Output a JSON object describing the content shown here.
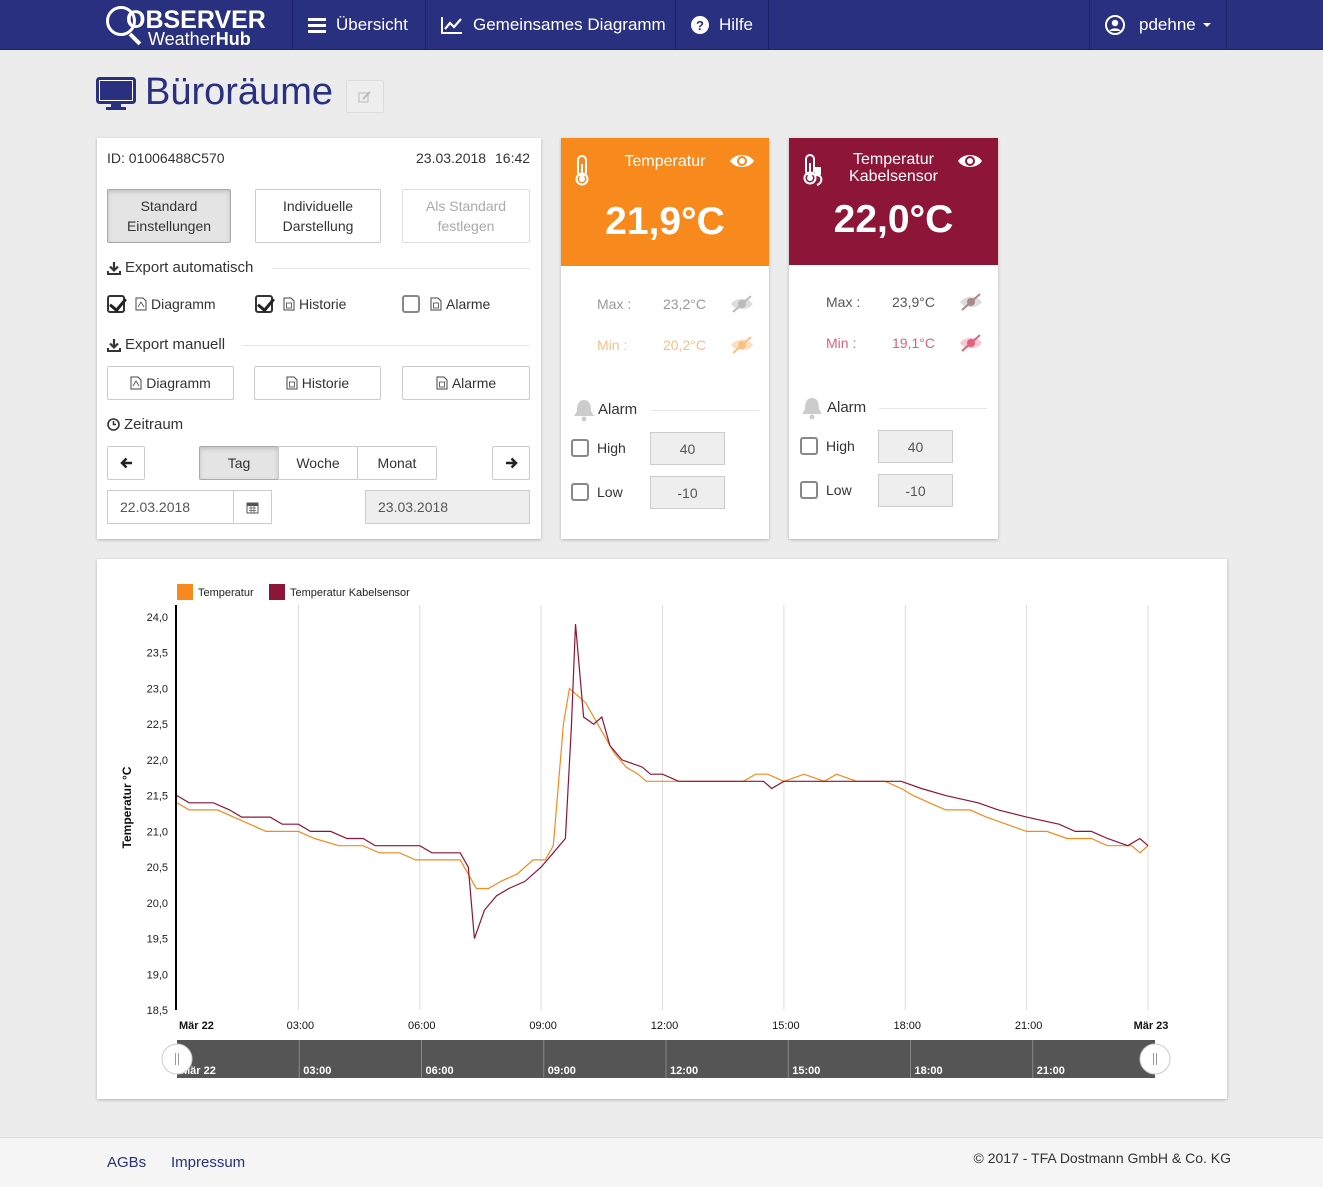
{
  "brand": {
    "line1": "OBSERVER",
    "line2a": "Weather",
    "line2b": "Hub"
  },
  "nav": {
    "overview": "Übersicht",
    "shared_chart": "Gemeinsames Diagramm",
    "help": "Hilfe",
    "user": "pdehne"
  },
  "page": {
    "title": "Büroräume"
  },
  "device": {
    "id": "ID: 01006488C570",
    "date": "23.03.2018",
    "time": "16:42"
  },
  "settings_buttons": {
    "standard": [
      "Standard",
      "Einstellungen"
    ],
    "individual": [
      "Individuelle",
      "Darstellung"
    ],
    "set_default": [
      "Als Standard",
      "festlegen"
    ]
  },
  "export_auto": {
    "heading": "Export automatisch",
    "items": [
      {
        "label": "Diagramm",
        "checked": true
      },
      {
        "label": "Historie",
        "checked": true
      },
      {
        "label": "Alarme",
        "checked": false
      }
    ]
  },
  "export_manual": {
    "heading": "Export manuell",
    "buttons": [
      "Diagramm",
      "Historie",
      "Alarme"
    ]
  },
  "period": {
    "heading": "Zeitraum",
    "tabs": [
      "Tag",
      "Woche",
      "Monat"
    ],
    "active": "Tag",
    "from": "22.03.2018",
    "to": "23.03.2018"
  },
  "sensors": [
    {
      "title": "Temperatur",
      "value": "21,9°C",
      "color": "#f7891d",
      "max_label": "Max :",
      "max_value": "23,2°C",
      "min_label": "Min :",
      "min_value": "20,2°C",
      "alarm_label": "Alarm",
      "high_label": "High",
      "high_value": "40",
      "low_label": "Low",
      "low_value": "-10"
    },
    {
      "title_line1": "Temperatur",
      "title_line2": "Kabelsensor",
      "value": "22,0°C",
      "color": "#8c1538",
      "max_label": "Max :",
      "max_value": "23,9°C",
      "min_label": "Min :",
      "min_value": "19,1°C",
      "alarm_label": "Alarm",
      "high_label": "High",
      "high_value": "40",
      "low_label": "Low",
      "low_value": "-10"
    }
  ],
  "footer": {
    "agb": "AGBs",
    "impressum": "Impressum",
    "copyright": "© 2017 - TFA Dostmann GmbH & Co. KG"
  },
  "chart_data": {
    "type": "line",
    "ylabel": "Temperatur °C",
    "ylim": [
      18.5,
      24.0
    ],
    "yticks": [
      "24,0",
      "23,5",
      "23,0",
      "22,5",
      "22,0",
      "21,5",
      "21,0",
      "20,5",
      "20,0",
      "19,5",
      "19,0",
      "18,5"
    ],
    "xlim_hours": [
      0,
      24
    ],
    "xticks": [
      {
        "h": 0,
        "label": "Mär 22"
      },
      {
        "h": 3,
        "label": "03:00"
      },
      {
        "h": 6,
        "label": "06:00"
      },
      {
        "h": 9,
        "label": "09:00"
      },
      {
        "h": 12,
        "label": "12:00"
      },
      {
        "h": 15,
        "label": "15:00"
      },
      {
        "h": 18,
        "label": "18:00"
      },
      {
        "h": 21,
        "label": "21:00"
      },
      {
        "h": 24,
        "label": "Mär 23"
      }
    ],
    "navigator_ticks": [
      {
        "h": 0,
        "label": "Mär 22"
      },
      {
        "h": 3,
        "label": "03:00"
      },
      {
        "h": 6,
        "label": "06:00"
      },
      {
        "h": 9,
        "label": "09:00"
      },
      {
        "h": 12,
        "label": "12:00"
      },
      {
        "h": 15,
        "label": "15:00"
      },
      {
        "h": 18,
        "label": "18:00"
      },
      {
        "h": 21,
        "label": "21:00"
      }
    ],
    "legend_placement": "top-left",
    "series": [
      {
        "name": "Temperatur",
        "color": "#f7891d",
        "points": [
          [
            0,
            21.4
          ],
          [
            0.3,
            21.3
          ],
          [
            1.0,
            21.3
          ],
          [
            1.4,
            21.2
          ],
          [
            1.8,
            21.1
          ],
          [
            2.2,
            21.0
          ],
          [
            3.0,
            21.0
          ],
          [
            3.4,
            20.9
          ],
          [
            4.0,
            20.8
          ],
          [
            4.6,
            20.8
          ],
          [
            5.0,
            20.7
          ],
          [
            5.5,
            20.7
          ],
          [
            5.9,
            20.6
          ],
          [
            6.3,
            20.6
          ],
          [
            7.0,
            20.6
          ],
          [
            7.2,
            20.4
          ],
          [
            7.4,
            20.2
          ],
          [
            7.7,
            20.2
          ],
          [
            8.0,
            20.3
          ],
          [
            8.4,
            20.4
          ],
          [
            8.8,
            20.6
          ],
          [
            9.1,
            20.6
          ],
          [
            9.3,
            20.8
          ],
          [
            9.55,
            22.5
          ],
          [
            9.7,
            23.0
          ],
          [
            9.9,
            22.9
          ],
          [
            10.1,
            22.8
          ],
          [
            10.4,
            22.5
          ],
          [
            10.8,
            22.1
          ],
          [
            11.1,
            21.9
          ],
          [
            11.4,
            21.8
          ],
          [
            11.6,
            21.7
          ],
          [
            12.0,
            21.7
          ],
          [
            14.0,
            21.7
          ],
          [
            14.3,
            21.8
          ],
          [
            14.6,
            21.8
          ],
          [
            15.0,
            21.7
          ],
          [
            15.5,
            21.8
          ],
          [
            16.0,
            21.7
          ],
          [
            16.3,
            21.8
          ],
          [
            16.8,
            21.7
          ],
          [
            17.5,
            21.7
          ],
          [
            17.9,
            21.6
          ],
          [
            18.2,
            21.5
          ],
          [
            18.6,
            21.4
          ],
          [
            19.0,
            21.3
          ],
          [
            19.6,
            21.3
          ],
          [
            20.0,
            21.2
          ],
          [
            20.5,
            21.1
          ],
          [
            21.0,
            21.0
          ],
          [
            21.5,
            21.0
          ],
          [
            22.0,
            20.9
          ],
          [
            22.6,
            20.9
          ],
          [
            23.0,
            20.8
          ],
          [
            23.6,
            20.8
          ],
          [
            23.8,
            20.7
          ],
          [
            24.0,
            20.8
          ]
        ]
      },
      {
        "name": "Temperatur Kabelsensor",
        "color": "#8c1538",
        "points": [
          [
            0,
            21.5
          ],
          [
            0.3,
            21.4
          ],
          [
            0.9,
            21.4
          ],
          [
            1.3,
            21.3
          ],
          [
            1.6,
            21.2
          ],
          [
            2.3,
            21.2
          ],
          [
            2.6,
            21.1
          ],
          [
            3.0,
            21.1
          ],
          [
            3.3,
            21.0
          ],
          [
            3.8,
            21.0
          ],
          [
            4.2,
            20.9
          ],
          [
            4.6,
            20.9
          ],
          [
            4.9,
            20.8
          ],
          [
            6.0,
            20.8
          ],
          [
            6.3,
            20.7
          ],
          [
            7.0,
            20.7
          ],
          [
            7.2,
            20.5
          ],
          [
            7.35,
            19.5
          ],
          [
            7.6,
            19.9
          ],
          [
            7.9,
            20.1
          ],
          [
            8.2,
            20.2
          ],
          [
            8.6,
            20.3
          ],
          [
            9.0,
            20.5
          ],
          [
            9.3,
            20.7
          ],
          [
            9.6,
            20.9
          ],
          [
            9.75,
            22.5
          ],
          [
            9.85,
            23.9
          ],
          [
            10.05,
            22.6
          ],
          [
            10.3,
            22.5
          ],
          [
            10.5,
            22.6
          ],
          [
            10.7,
            22.2
          ],
          [
            11.0,
            22.0
          ],
          [
            11.5,
            21.9
          ],
          [
            11.7,
            21.8
          ],
          [
            12.0,
            21.8
          ],
          [
            12.4,
            21.7
          ],
          [
            14.5,
            21.7
          ],
          [
            14.7,
            21.6
          ],
          [
            15.0,
            21.7
          ],
          [
            17.9,
            21.7
          ],
          [
            18.4,
            21.6
          ],
          [
            19.0,
            21.5
          ],
          [
            19.8,
            21.4
          ],
          [
            20.3,
            21.3
          ],
          [
            21.0,
            21.2
          ],
          [
            21.8,
            21.1
          ],
          [
            22.2,
            21.0
          ],
          [
            22.6,
            21.0
          ],
          [
            23.0,
            20.9
          ],
          [
            23.5,
            20.8
          ],
          [
            23.8,
            20.9
          ],
          [
            24.0,
            20.8
          ]
        ]
      }
    ]
  }
}
